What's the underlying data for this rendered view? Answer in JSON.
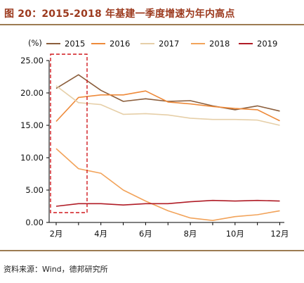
{
  "header": {
    "title": "图 20：2015-2018 年基建一季度增速为年内高点"
  },
  "footer": {
    "source": "资料来源：Wind，德邦研究所"
  },
  "chart_data": {
    "type": "line",
    "title": "",
    "ylabel": "(%)",
    "xlabel": "",
    "ylim": [
      0,
      25
    ],
    "yticks": [
      "0.00",
      "5.00",
      "10.00",
      "15.00",
      "20.00",
      "25.00"
    ],
    "x": [
      2,
      3,
      4,
      5,
      6,
      7,
      8,
      9,
      10,
      11,
      12
    ],
    "xtick_labels": [
      "2月",
      "4月",
      "6月",
      "8月",
      "10月",
      "12月"
    ],
    "legend_position": "top",
    "grid": false,
    "annotation": "dashed red box highlighting Feb–Mar",
    "series": [
      {
        "name": "2015",
        "color": "#8b5e3c",
        "values": [
          20.7,
          22.8,
          20.4,
          18.7,
          19.1,
          18.7,
          18.8,
          18.0,
          17.4,
          18.0,
          17.2
        ]
      },
      {
        "name": "2016",
        "color": "#ee8a3a",
        "values": [
          15.6,
          19.3,
          19.7,
          19.7,
          20.3,
          18.6,
          18.3,
          17.9,
          17.6,
          17.4,
          15.7
        ]
      },
      {
        "name": "2017",
        "color": "#e6cfa8",
        "values": [
          21.1,
          18.5,
          18.2,
          16.7,
          16.8,
          16.6,
          16.1,
          15.9,
          15.9,
          15.8,
          15.0
        ]
      },
      {
        "name": "2018",
        "color": "#f2a35a",
        "values": [
          11.4,
          8.3,
          7.6,
          5.0,
          3.3,
          1.8,
          0.7,
          0.3,
          0.9,
          1.2,
          1.8
        ]
      },
      {
        "name": "2019",
        "color": "#b01c26",
        "values": [
          2.5,
          2.9,
          2.9,
          2.7,
          2.9,
          2.9,
          3.2,
          3.4,
          3.3,
          3.4,
          3.3
        ]
      }
    ]
  }
}
